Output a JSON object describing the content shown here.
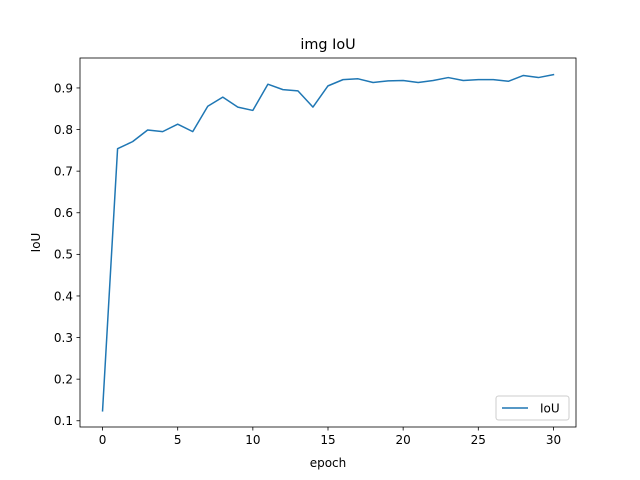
{
  "chart_data": {
    "type": "line",
    "title": "img IoU",
    "xlabel": "epoch",
    "ylabel": "IoU",
    "xlim": [
      -1.5,
      31.5
    ],
    "ylim": [
      0.085,
      0.972
    ],
    "xticks": [
      0,
      5,
      10,
      15,
      20,
      25,
      30
    ],
    "yticks": [
      0.1,
      0.2,
      0.3,
      0.4,
      0.5,
      0.6,
      0.7,
      0.8,
      0.9
    ],
    "grid": false,
    "legend_position": "lower right",
    "series": [
      {
        "name": "IoU",
        "color": "#1f77b4",
        "x": [
          0,
          1,
          2,
          3,
          4,
          5,
          6,
          7,
          8,
          9,
          10,
          11,
          12,
          13,
          14,
          15,
          16,
          17,
          18,
          19,
          20,
          21,
          22,
          23,
          24,
          25,
          26,
          27,
          28,
          29,
          30
        ],
        "y": [
          0.124,
          0.754,
          0.771,
          0.799,
          0.795,
          0.813,
          0.795,
          0.856,
          0.878,
          0.854,
          0.846,
          0.909,
          0.896,
          0.893,
          0.854,
          0.905,
          0.92,
          0.922,
          0.913,
          0.917,
          0.918,
          0.913,
          0.918,
          0.925,
          0.918,
          0.92,
          0.92,
          0.916,
          0.93,
          0.925,
          0.932
        ]
      }
    ]
  }
}
